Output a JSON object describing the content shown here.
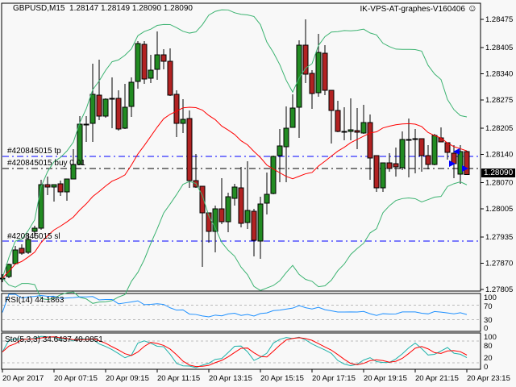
{
  "header": {
    "symbol": "GBPUSD,M15",
    "ohlc": "1.28147 1.28149 1.28090 1.28090",
    "expert": "IK-VPS-AT-graphes-V160406",
    "expert_icon": "smiley-icon"
  },
  "rsi": {
    "label": "RSI(14) 44.1863",
    "levels": [
      70,
      30
    ],
    "axis_labels": [
      "100",
      "70",
      "30",
      "0"
    ]
  },
  "stoch": {
    "label": "Sto(5,3,3) 34.6437 40.0851",
    "levels": [
      80,
      20
    ],
    "axis_labels": [
      "100",
      "80",
      "20",
      "0"
    ]
  },
  "trade_lines": [
    {
      "label": "#420845015 tp",
      "price": 1.28135,
      "color": "#0000ff"
    },
    {
      "label": "#420845015 buy 0.01",
      "price": 1.28105,
      "color": "#000000"
    },
    {
      "label": "#420845015 sl",
      "price": 1.27925,
      "color": "#0000ff"
    }
  ],
  "current_price": "1.28090",
  "colors": {
    "bull": "#228b22",
    "bear": "#b22222",
    "bands": "#3cb371",
    "ma": "#ff0000",
    "rsi": "#1e90ff",
    "stoch_main": "#20b2aa",
    "stoch_signal": "#ff0000"
  },
  "chart_data": {
    "type": "candlestick",
    "symbol": "GBPUSD",
    "timeframe": "M15",
    "first_bar_time": "20 Apr 05:15",
    "y_ticks": [
      "1.28475",
      "1.28405",
      "1.28340",
      "1.28275",
      "1.28205",
      "1.28140",
      "1.28070",
      "1.28005",
      "1.27935",
      "1.27870",
      "1.27805"
    ],
    "ylim": [
      1.27805,
      1.28475
    ],
    "x_ticks": [
      "20 Apr 2017",
      "20 Apr 07:15",
      "20 Apr 09:15",
      "20 Apr 11:15",
      "20 Apr 13:15",
      "20 Apr 15:15",
      "20 Apr 17:15",
      "20 Apr 19:15",
      "20 Apr 21:15",
      "20 Apr 23:15"
    ],
    "ohlc": [
      [
        1.27833,
        1.27843,
        1.27823,
        1.27833
      ],
      [
        1.27837,
        1.27869,
        1.27833,
        1.27867
      ],
      [
        1.27869,
        1.27913,
        1.27867,
        1.27903
      ],
      [
        1.27907,
        1.27917,
        1.27891,
        1.27895
      ],
      [
        1.27897,
        1.27943,
        1.27893,
        1.27929
      ],
      [
        1.27949,
        1.27963,
        1.27933,
        1.27957
      ],
      [
        1.27957,
        1.28077,
        1.27953,
        1.28065
      ],
      [
        1.28065,
        1.28085,
        1.28039,
        1.28059
      ],
      [
        1.28059,
        1.28065,
        1.28023,
        1.28065
      ],
      [
        1.28067,
        1.28075,
        1.28037,
        1.28047
      ],
      [
        1.28047,
        1.28079,
        1.28025,
        1.28079
      ],
      [
        1.28079,
        1.28153,
        1.28079,
        1.28115
      ],
      [
        1.28115,
        1.28235,
        1.28113,
        1.28215
      ],
      [
        1.28215,
        1.28235,
        1.28171,
        1.28215
      ],
      [
        1.28217,
        1.28365,
        1.28171,
        1.28289
      ],
      [
        1.28287,
        1.28375,
        1.28225,
        1.28235
      ],
      [
        1.28235,
        1.28279,
        1.28231,
        1.28277
      ],
      [
        1.28279,
        1.28331,
        1.28205,
        1.28279
      ],
      [
        1.28279,
        1.28299,
        1.28199,
        1.28203
      ],
      [
        1.28205,
        1.28315,
        1.28203,
        1.28257
      ],
      [
        1.28259,
        1.28331,
        1.28233,
        1.28319
      ],
      [
        1.28321,
        1.28421,
        1.28303,
        1.28415
      ],
      [
        1.28413,
        1.28421,
        1.28315,
        1.28327
      ],
      [
        1.28329,
        1.28387,
        1.28317,
        1.28349
      ],
      [
        1.28351,
        1.28445,
        1.28325,
        1.28387
      ],
      [
        1.28387,
        1.28401,
        1.28351,
        1.28371
      ],
      [
        1.28371,
        1.28403,
        1.28285,
        1.28287
      ],
      [
        1.28289,
        1.28299,
        1.28183,
        1.28217
      ],
      [
        1.28217,
        1.28277,
        1.28193,
        1.28227
      ],
      [
        1.28229,
        1.28249,
        1.28057,
        1.28075
      ],
      [
        1.28075,
        1.28141,
        1.28057,
        1.28059
      ],
      [
        1.28061,
        1.28061,
        1.27861,
        1.27995
      ],
      [
        1.27995,
        1.27995,
        1.27921,
        1.27949
      ],
      [
        1.27949,
        1.28013,
        1.27897,
        1.28005
      ],
      [
        1.28005,
        1.28081,
        1.27967,
        1.27973
      ],
      [
        1.27973,
        1.28045,
        1.27947,
        1.28035
      ],
      [
        1.28031,
        1.28067,
        1.28013,
        1.28059
      ],
      [
        1.28057,
        1.28109,
        1.27959,
        1.27969
      ],
      [
        1.27971,
        1.28123,
        1.27955,
        1.28001
      ],
      [
        1.27999,
        1.28005,
        1.27887,
        1.27927
      ],
      [
        1.27925,
        1.28035,
        1.27881,
        1.28017
      ],
      [
        1.28019,
        1.28095,
        1.27991,
        1.28041
      ],
      [
        1.28043,
        1.28137,
        1.28041,
        1.28135
      ],
      [
        1.28137,
        1.28203,
        1.28071,
        1.28161
      ],
      [
        1.28159,
        1.28259,
        1.28071,
        1.28205
      ],
      [
        1.28207,
        1.28289,
        1.28207,
        1.28255
      ],
      [
        1.28257,
        1.28423,
        1.28181,
        1.28411
      ],
      [
        1.28411,
        1.28475,
        1.28317,
        1.28339
      ],
      [
        1.28341,
        1.28349,
        1.28253,
        1.28291
      ],
      [
        1.28293,
        1.28439,
        1.28283,
        1.28393
      ],
      [
        1.28391,
        1.28411,
        1.28287,
        1.28299
      ],
      [
        1.28299,
        1.28299,
        1.28167,
        1.28249
      ],
      [
        1.28249,
        1.28273,
        1.28195,
        1.28197
      ],
      [
        1.28197,
        1.28257,
        1.28175,
        1.28197
      ],
      [
        1.28197,
        1.28279,
        1.28175,
        1.28201
      ],
      [
        1.28199,
        1.28255,
        1.28153,
        1.28195
      ],
      [
        1.28193,
        1.28263,
        1.28191,
        1.28219
      ],
      [
        1.28219,
        1.28239,
        1.28077,
        1.28131
      ],
      [
        1.28137,
        1.28137,
        1.28047,
        1.28057
      ],
      [
        1.28057,
        1.28119,
        1.28047,
        1.28119
      ],
      [
        1.28119,
        1.28143,
        1.28097,
        1.28105
      ],
      [
        1.28117,
        1.28157,
        1.28085,
        1.28109
      ],
      [
        1.28107,
        1.28197,
        1.28101,
        1.28177
      ],
      [
        1.28177,
        1.28229,
        1.28083,
        1.28177
      ],
      [
        1.28179,
        1.28203,
        1.28093,
        1.28179
      ],
      [
        1.28179,
        1.28179,
        1.28097,
        1.28137
      ],
      [
        1.28137,
        1.28163,
        1.28103,
        1.28115
      ],
      [
        1.28115,
        1.28191,
        1.28113,
        1.28187
      ],
      [
        1.28181,
        1.28207,
        1.28171,
        1.28171
      ],
      [
        1.28169,
        1.28169,
        1.28127,
        1.28145
      ],
      [
        1.28143,
        1.28163,
        1.28081,
        1.28117
      ],
      [
        1.28091,
        1.28163,
        1.28067,
        1.28147
      ],
      [
        1.28147,
        1.28149,
        1.2809,
        1.2809
      ]
    ]
  }
}
